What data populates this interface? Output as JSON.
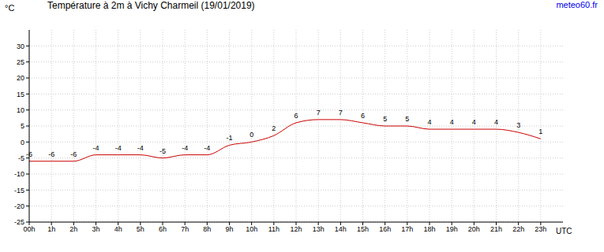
{
  "chart_data": {
    "type": "line",
    "title": "Température à 2m à Vichy Charmeil (19/01/2019)",
    "source": "meteo60.fr",
    "ylabel": "°C",
    "xlabel": "UTC",
    "x": [
      0,
      1,
      2,
      3,
      4,
      5,
      6,
      7,
      8,
      9,
      10,
      11,
      12,
      13,
      14,
      15,
      16,
      17,
      18,
      19,
      20,
      21,
      22,
      23
    ],
    "values": [
      -6,
      -6,
      -6,
      -4,
      -4,
      -4,
      -5,
      -4,
      -4,
      -1,
      0,
      2,
      6,
      7,
      7,
      6,
      5,
      5,
      4,
      4,
      4,
      4,
      3,
      1
    ],
    "color": "#cc0000",
    "xlim": [
      0,
      24
    ],
    "xticks": [
      {
        "value": 0,
        "label": "00h"
      },
      {
        "value": 1,
        "label": "1h"
      },
      {
        "value": 2,
        "label": "2h"
      },
      {
        "value": 3,
        "label": "3h"
      },
      {
        "value": 4,
        "label": "4h"
      },
      {
        "value": 5,
        "label": "5h"
      },
      {
        "value": 6,
        "label": "6h"
      },
      {
        "value": 7,
        "label": "7h"
      },
      {
        "value": 8,
        "label": "8h"
      },
      {
        "value": 9,
        "label": "9h"
      },
      {
        "value": 10,
        "label": "10h"
      },
      {
        "value": 11,
        "label": "11h"
      },
      {
        "value": 12,
        "label": "12h"
      },
      {
        "value": 13,
        "label": "13h"
      },
      {
        "value": 14,
        "label": "14h"
      },
      {
        "value": 15,
        "label": "15h"
      },
      {
        "value": 16,
        "label": "16h"
      },
      {
        "value": 17,
        "label": "17h"
      },
      {
        "value": 18,
        "label": "18h"
      },
      {
        "value": 19,
        "label": "19h"
      },
      {
        "value": 20,
        "label": "20h"
      },
      {
        "value": 21,
        "label": "21h"
      },
      {
        "value": 22,
        "label": "22h"
      },
      {
        "value": 23,
        "label": "23h"
      }
    ],
    "ylim": [
      -25,
      35
    ],
    "yticks": [
      -25,
      -20,
      -15,
      -10,
      -5,
      0,
      5,
      10,
      15,
      20,
      25,
      30
    ],
    "grid": true,
    "data_labels": true
  }
}
